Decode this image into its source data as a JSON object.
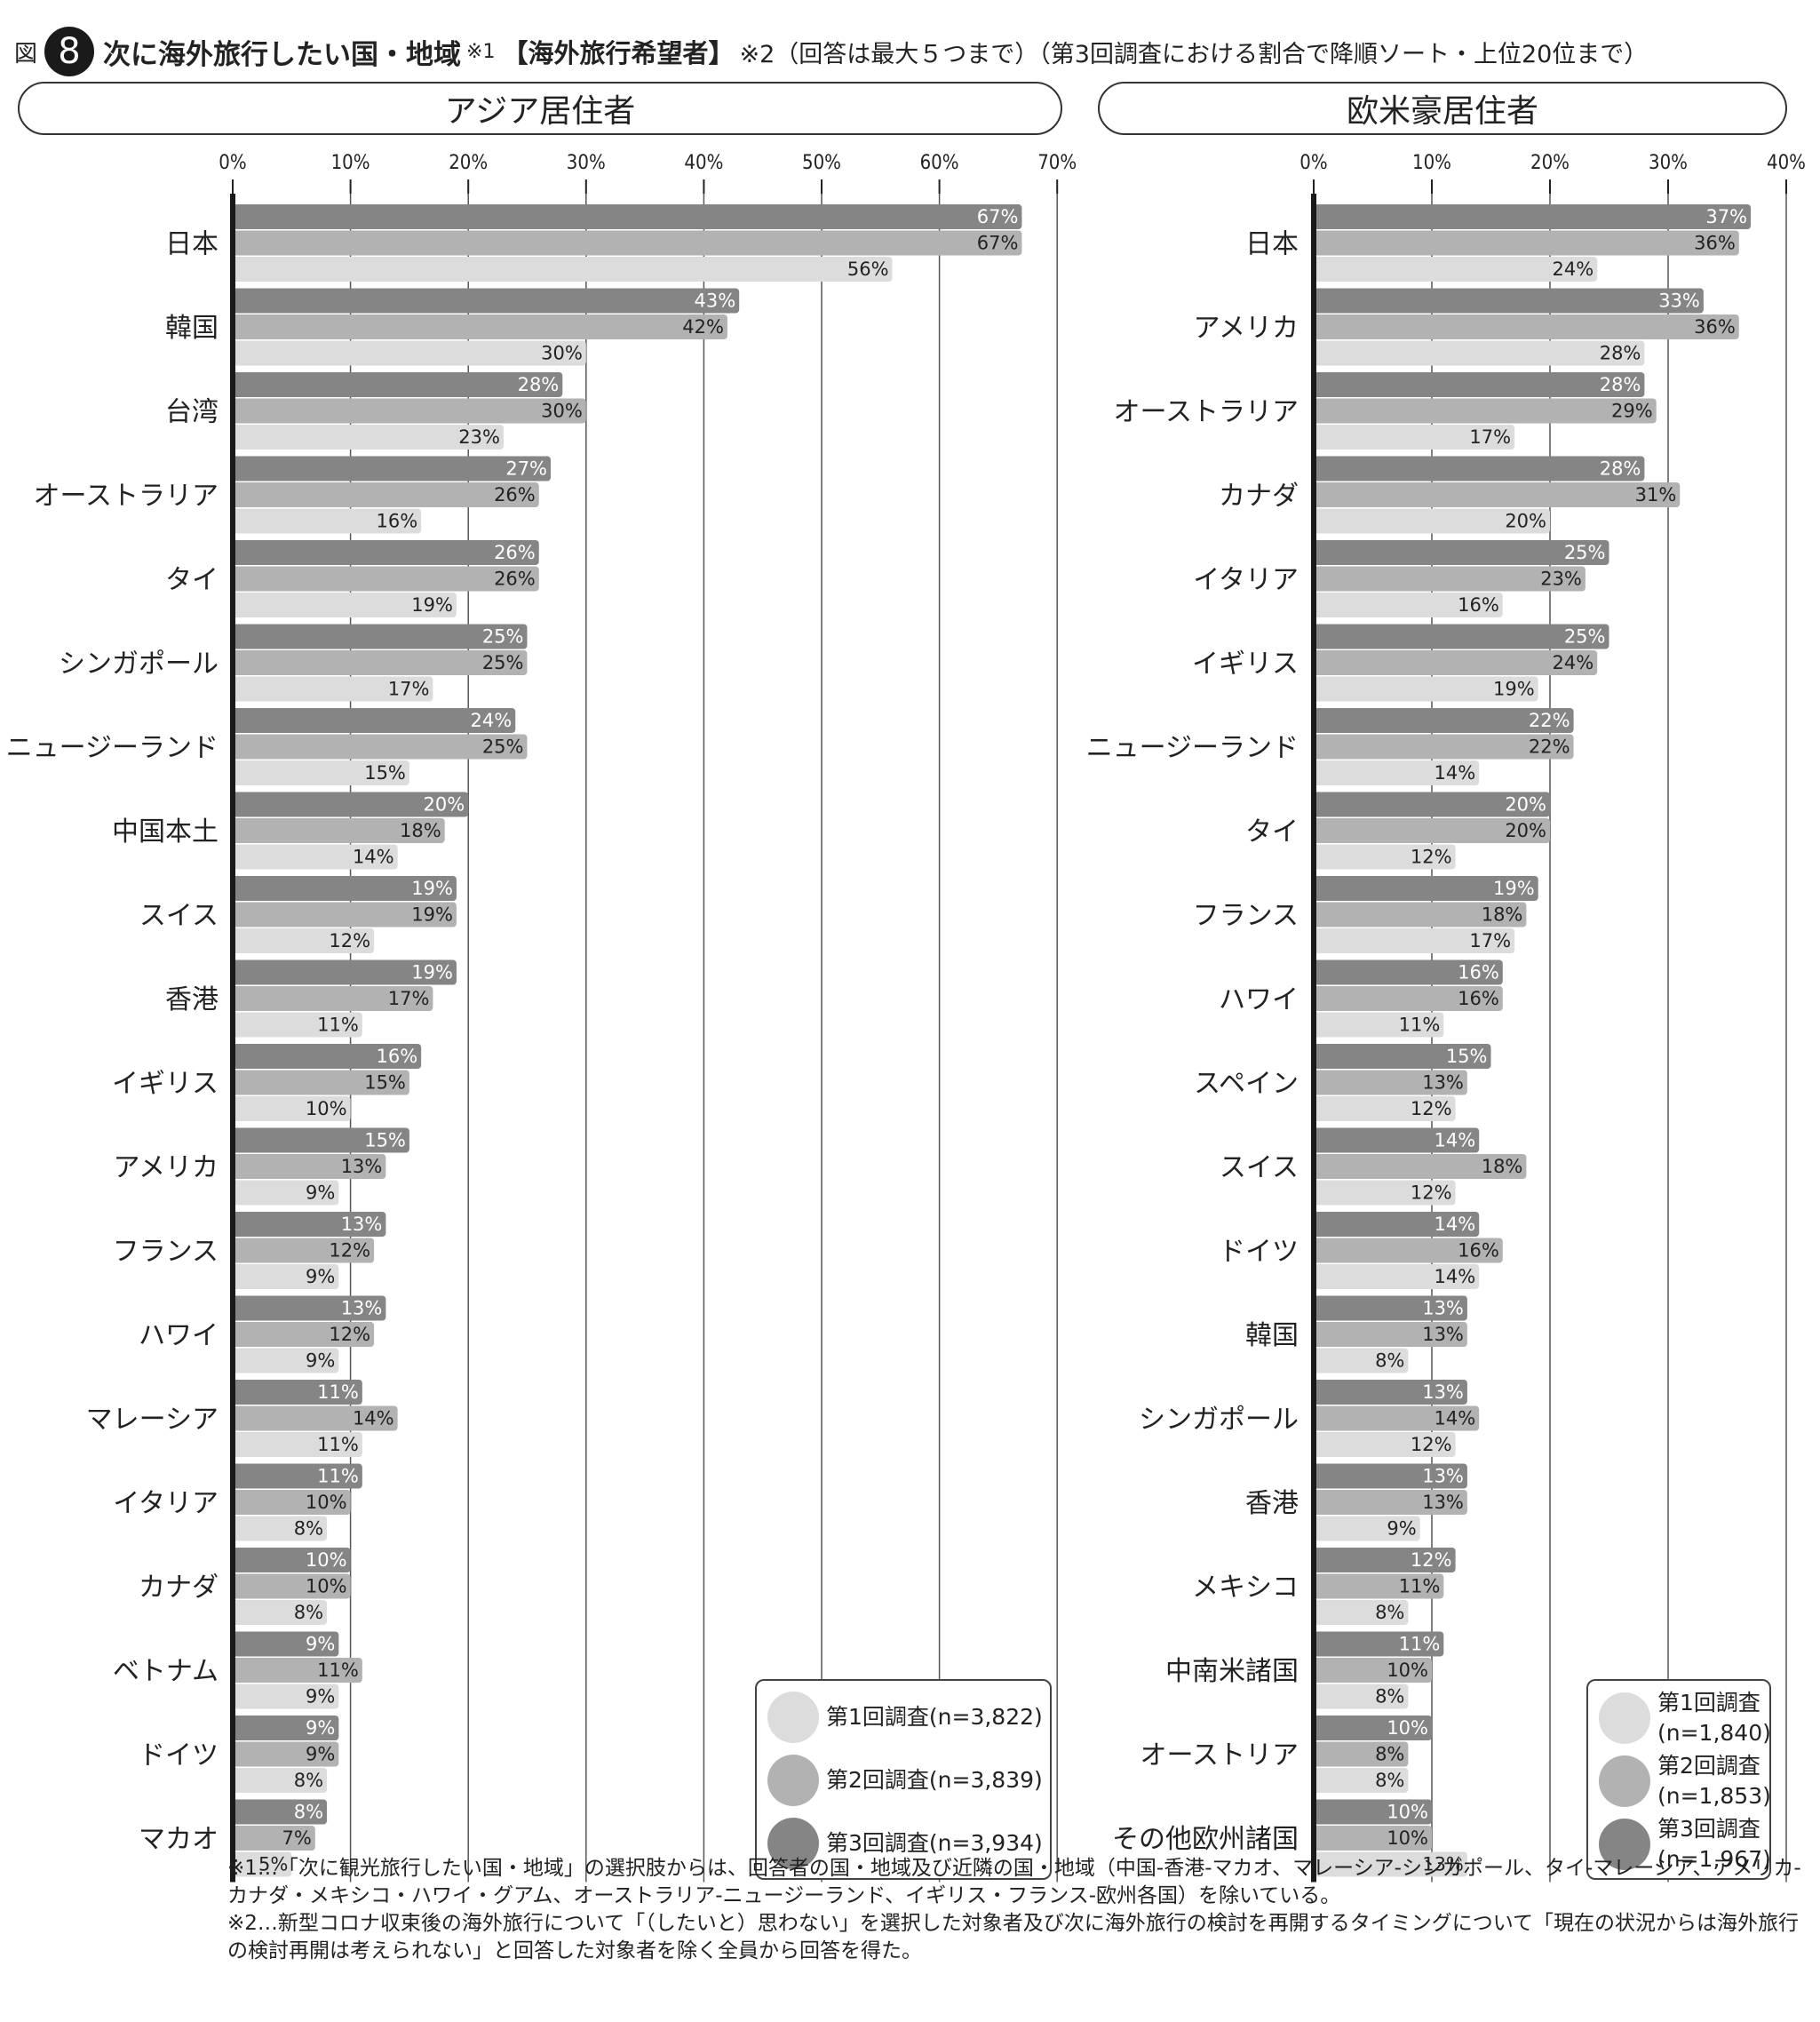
{
  "title": {
    "prefix": "図",
    "number": "8",
    "main": "次に海外旅行したい国・地域",
    "note1": "※1",
    "bold2": "【海外旅行希望者】",
    "rest": "※2（回答は最大５つまで）（第3回調査における割合で降順ソート・上位20位まで）"
  },
  "colors": {
    "survey1": "#dcdcdc",
    "survey2": "#b2b2b2",
    "survey3": "#858585"
  },
  "chart_data": [
    {
      "type": "bar",
      "orientation": "horizontal",
      "title": "アジア居住者",
      "xlim": [
        0,
        70
      ],
      "xticks": [
        "0%",
        "10%",
        "20%",
        "30%",
        "40%",
        "50%",
        "60%",
        "70%"
      ],
      "grid": true,
      "categories": [
        "日本",
        "韓国",
        "台湾",
        "オーストラリア",
        "タイ",
        "シンガポール",
        "ニュージーランド",
        "中国本土",
        "スイス",
        "香港",
        "イギリス",
        "アメリカ",
        "フランス",
        "ハワイ",
        "マレーシア",
        "イタリア",
        "カナダ",
        "ベトナム",
        "ドイツ",
        "マカオ"
      ],
      "series": [
        {
          "name": "第3回調査(n=3,934)",
          "values": [
            67,
            43,
            28,
            27,
            26,
            25,
            24,
            20,
            19,
            19,
            16,
            15,
            13,
            13,
            11,
            11,
            10,
            9,
            9,
            8
          ]
        },
        {
          "name": "第2回調査(n=3,839)",
          "values": [
            67,
            42,
            30,
            26,
            26,
            25,
            25,
            18,
            19,
            17,
            15,
            13,
            12,
            12,
            14,
            10,
            10,
            11,
            9,
            7
          ]
        },
        {
          "name": "第1回調査(n=3,822)",
          "values": [
            56,
            30,
            23,
            16,
            19,
            17,
            15,
            14,
            12,
            11,
            10,
            9,
            9,
            9,
            11,
            8,
            8,
            9,
            8,
            5
          ]
        }
      ],
      "legend": {
        "position": "bottom-right",
        "items": [
          {
            "label": "第1回調査(n=3,822)",
            "color": "#dcdcdc"
          },
          {
            "label": "第2回調査(n=3,839)",
            "color": "#b2b2b2"
          },
          {
            "label": "第3回調査(n=3,934)",
            "color": "#858585"
          }
        ]
      }
    },
    {
      "type": "bar",
      "orientation": "horizontal",
      "title": "欧米豪居住者",
      "xlim": [
        0,
        40
      ],
      "xticks": [
        "0%",
        "10%",
        "20%",
        "30%",
        "40%"
      ],
      "grid": true,
      "categories": [
        "日本",
        "アメリカ",
        "オーストラリア",
        "カナダ",
        "イタリア",
        "イギリス",
        "ニュージーランド",
        "タイ",
        "フランス",
        "ハワイ",
        "スペイン",
        "スイス",
        "ドイツ",
        "韓国",
        "シンガポール",
        "香港",
        "メキシコ",
        "中南米諸国",
        "オーストリア",
        "その他欧州諸国"
      ],
      "series": [
        {
          "name": "第3回調査(n=1,967)",
          "values": [
            37,
            33,
            28,
            28,
            25,
            25,
            22,
            20,
            19,
            16,
            15,
            14,
            14,
            13,
            13,
            13,
            12,
            11,
            10,
            10
          ]
        },
        {
          "name": "第2回調査(n=1,853)",
          "values": [
            36,
            36,
            29,
            31,
            23,
            24,
            22,
            20,
            18,
            16,
            13,
            18,
            16,
            13,
            14,
            13,
            11,
            10,
            8,
            10
          ]
        },
        {
          "name": "第1回調査(n=1,840)",
          "values": [
            24,
            28,
            17,
            20,
            16,
            19,
            14,
            12,
            17,
            11,
            12,
            12,
            14,
            8,
            12,
            9,
            8,
            8,
            8,
            13
          ]
        }
      ],
      "legend": {
        "position": "bottom-right",
        "items": [
          {
            "label1": "第1回調査",
            "label2": "(n=1,840)",
            "color": "#dcdcdc"
          },
          {
            "label1": "第2回調査",
            "label2": "(n=1,853)",
            "color": "#b2b2b2"
          },
          {
            "label1": "第3回調査",
            "label2": "(n=1,967)",
            "color": "#858585"
          }
        ]
      }
    }
  ],
  "notes": [
    "※1…「次に観光旅行したい国・地域」の選択肢からは、回答者の国・地域及び近隣の国・地域（中国-香港-マカオ、マレーシア-シンガポール、タイ-マレーシア、アメリカ-カナダ・メキシコ・ハワイ・グアム、オーストラリア-ニュージーランド、イギリス・フランス-欧州各国）を除いている。",
    "※2…新型コロナ収束後の海外旅行について「（したいと）思わない」を選択した対象者及び次に海外旅行の検討を再開するタイミングについて「現在の状況からは海外旅行の検討再開は考えられない」と回答した対象者を除く全員から回答を得た。"
  ]
}
